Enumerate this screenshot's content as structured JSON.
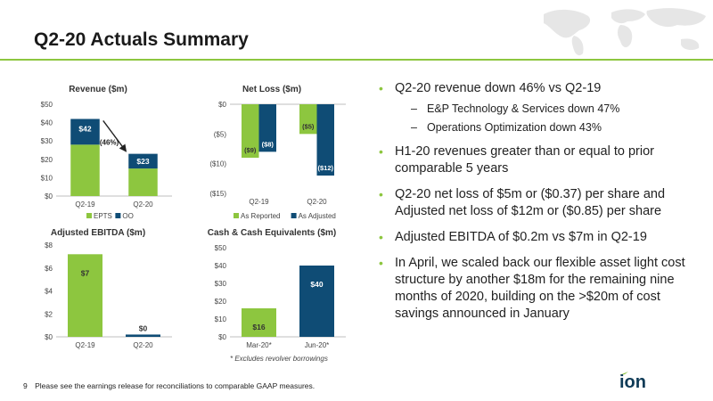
{
  "page": {
    "title": "Q2-20 Actuals Summary",
    "page_number": "9",
    "footer_note": "Please see the earnings release for reconciliations to comparable GAAP measures."
  },
  "colors": {
    "green": "#8dc63f",
    "navy": "#0f4c75",
    "gray": "#d9d9d9",
    "text": "#333333"
  },
  "chart_data": [
    {
      "type": "bar",
      "title": "Revenue ($m)",
      "categories": [
        "Q2-19",
        "Q2-20"
      ],
      "series": [
        {
          "name": "EPTS",
          "values": [
            28,
            15
          ],
          "color": "#8dc63f"
        },
        {
          "name": "OO",
          "values": [
            14,
            8
          ],
          "color": "#0f4c75"
        }
      ],
      "stacked": true,
      "totals": [
        "$42",
        "$23"
      ],
      "ylim": [
        0,
        50
      ],
      "yticks": [
        0,
        10,
        20,
        30,
        40,
        50
      ],
      "ytick_labels": [
        "$0",
        "$10",
        "$20",
        "$30",
        "$40",
        "$50"
      ],
      "annotation": "(46%)",
      "legend": "bottom"
    },
    {
      "type": "bar",
      "title": "Net Loss ($m)",
      "categories": [
        "Q2-19",
        "Q2-20"
      ],
      "series": [
        {
          "name": "As Reported",
          "values": [
            -9,
            -5
          ],
          "labels": [
            "($9)",
            "($5)"
          ],
          "color": "#8dc63f"
        },
        {
          "name": "As Adjusted",
          "values": [
            -8,
            -12
          ],
          "labels": [
            "($8)",
            "($12)"
          ],
          "color": "#0f4c75"
        }
      ],
      "ylim": [
        -15,
        0
      ],
      "yticks": [
        0,
        -5,
        -10,
        -15
      ],
      "ytick_labels": [
        "$0",
        "($5)",
        "($10)",
        "($15)"
      ],
      "legend": "bottom"
    },
    {
      "type": "bar",
      "title": "Adjusted EBITDA ($m)",
      "categories": [
        "Q2-19",
        "Q2-20"
      ],
      "values": [
        7.2,
        0.2
      ],
      "labels": [
        "$7",
        "$0"
      ],
      "colors": [
        "#8dc63f",
        "#0f4c75"
      ],
      "ylim": [
        0,
        8
      ],
      "yticks": [
        0,
        2,
        4,
        6,
        8
      ],
      "ytick_labels": [
        "$0",
        "$2",
        "$4",
        "$6",
        "$8"
      ]
    },
    {
      "type": "bar",
      "title": "Cash & Cash Equivalents ($m)",
      "categories": [
        "Mar-20*",
        "Jun-20*"
      ],
      "values": [
        16,
        40
      ],
      "labels": [
        "$16",
        "$40"
      ],
      "colors": [
        "#8dc63f",
        "#0f4c75"
      ],
      "ylim": [
        0,
        50
      ],
      "yticks": [
        0,
        10,
        20,
        30,
        40,
        50
      ],
      "ytick_labels": [
        "$0",
        "$10",
        "$20",
        "$30",
        "$40",
        "$50"
      ],
      "footnote": "* Excludes revolver borrowings"
    }
  ],
  "bullets": [
    {
      "text": "Q2-20 revenue down 46% vs Q2-19",
      "subs": [
        "E&P Technology & Services down 47%",
        "Operations Optimization down 43%"
      ]
    },
    {
      "text": "H1-20 revenues greater than or equal to prior comparable 5 years",
      "subs": []
    },
    {
      "text": "Q2-20 net loss of $5m or ($0.37) per share and Adjusted net loss of $12m or ($0.85) per share",
      "subs": []
    },
    {
      "text": "Adjusted EBITDA of $0.2m vs $7m in Q2-19",
      "subs": []
    },
    {
      "text": "In April, we scaled back our flexible asset light cost structure by another $18m for the remaining nine months of 2020, building on the >$20m of cost savings announced in January",
      "subs": []
    }
  ],
  "logo": {
    "text": "ion",
    "icon": "ion-logo"
  }
}
